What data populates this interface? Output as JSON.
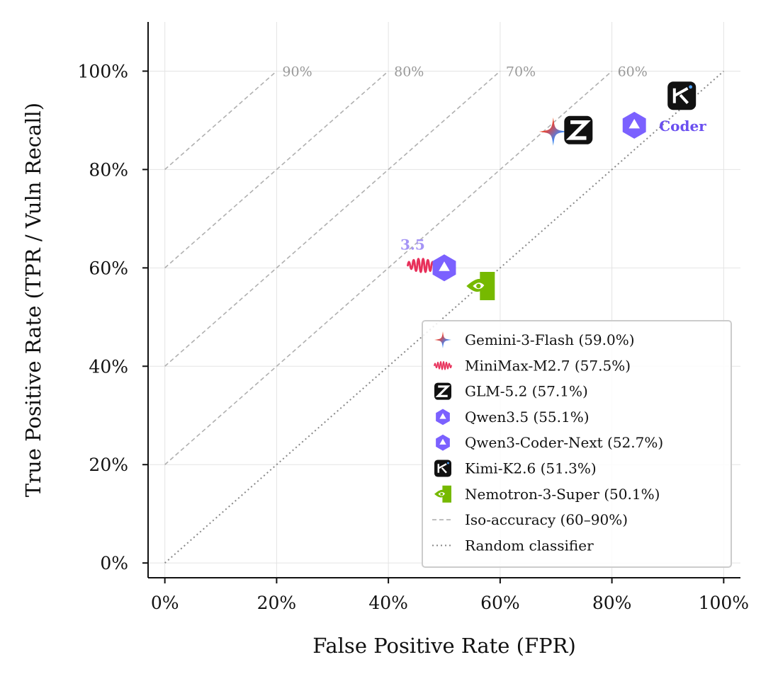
{
  "chart_data": {
    "type": "scatter",
    "xlabel": "False Positive Rate  (FPR)",
    "ylabel": "True Positive Rate  (TPR / Vuln Recall)",
    "xlim": [
      -0.03,
      1.03
    ],
    "ylim": [
      -0.03,
      1.1
    ],
    "x_ticks": [
      "0%",
      "20%",
      "40%",
      "60%",
      "80%",
      "100%"
    ],
    "y_ticks": [
      "0%",
      "20%",
      "40%",
      "60%",
      "80%",
      "100%"
    ],
    "grid": true,
    "legend_position": "lower-right",
    "series": [
      {
        "name": "Gemini-3-Flash (59.0%)",
        "x": 0.695,
        "y": 0.877,
        "icon": "gemini-sparkle-icon",
        "colors": [
          "#f4b400",
          "#ea4335",
          "#4285f4",
          "#34a853"
        ]
      },
      {
        "name": "MiniMax-M2.7 (57.5%)",
        "x": 0.46,
        "y": 0.605,
        "icon": "minimax-wave-icon",
        "colors": [
          "#e8315b",
          "#f0643a"
        ]
      },
      {
        "name": "GLM-5.2 (57.1%)",
        "x": 0.74,
        "y": 0.88,
        "icon": "glm-z-icon",
        "colors": [
          "#111111"
        ]
      },
      {
        "name": "Qwen3.5 (55.1%)",
        "x": 0.5,
        "y": 0.6,
        "icon": "qwen-star-icon",
        "colors": [
          "#7b61ff"
        ],
        "tag": "3.5",
        "tag_color": "#a493f5"
      },
      {
        "name": "Qwen3-Coder-Next (52.7%)",
        "x": 0.84,
        "y": 0.89,
        "icon": "qwen-star-icon",
        "colors": [
          "#7b61ff"
        ],
        "tag": "Coder",
        "tag_color": "#6a4ff0"
      },
      {
        "name": "Kimi-K2.6 (51.3%)",
        "x": 0.925,
        "y": 0.95,
        "icon": "kimi-k-icon",
        "colors": [
          "#111111",
          "#4ea3ff"
        ]
      },
      {
        "name": "Nemotron-3-Super (50.1%)",
        "x": 0.565,
        "y": 0.563,
        "icon": "nvidia-eye-icon",
        "colors": [
          "#76b900"
        ]
      }
    ],
    "iso_accuracy": {
      "levels": [
        0.9,
        0.8,
        0.7,
        0.6
      ],
      "labels": [
        "90%",
        "80%",
        "70%",
        "60%"
      ],
      "legend": "Iso-accuracy (60–90%)",
      "color": "#b0b0b0"
    },
    "random_classifier": {
      "legend": "Random classifier",
      "color": "#888888"
    }
  }
}
